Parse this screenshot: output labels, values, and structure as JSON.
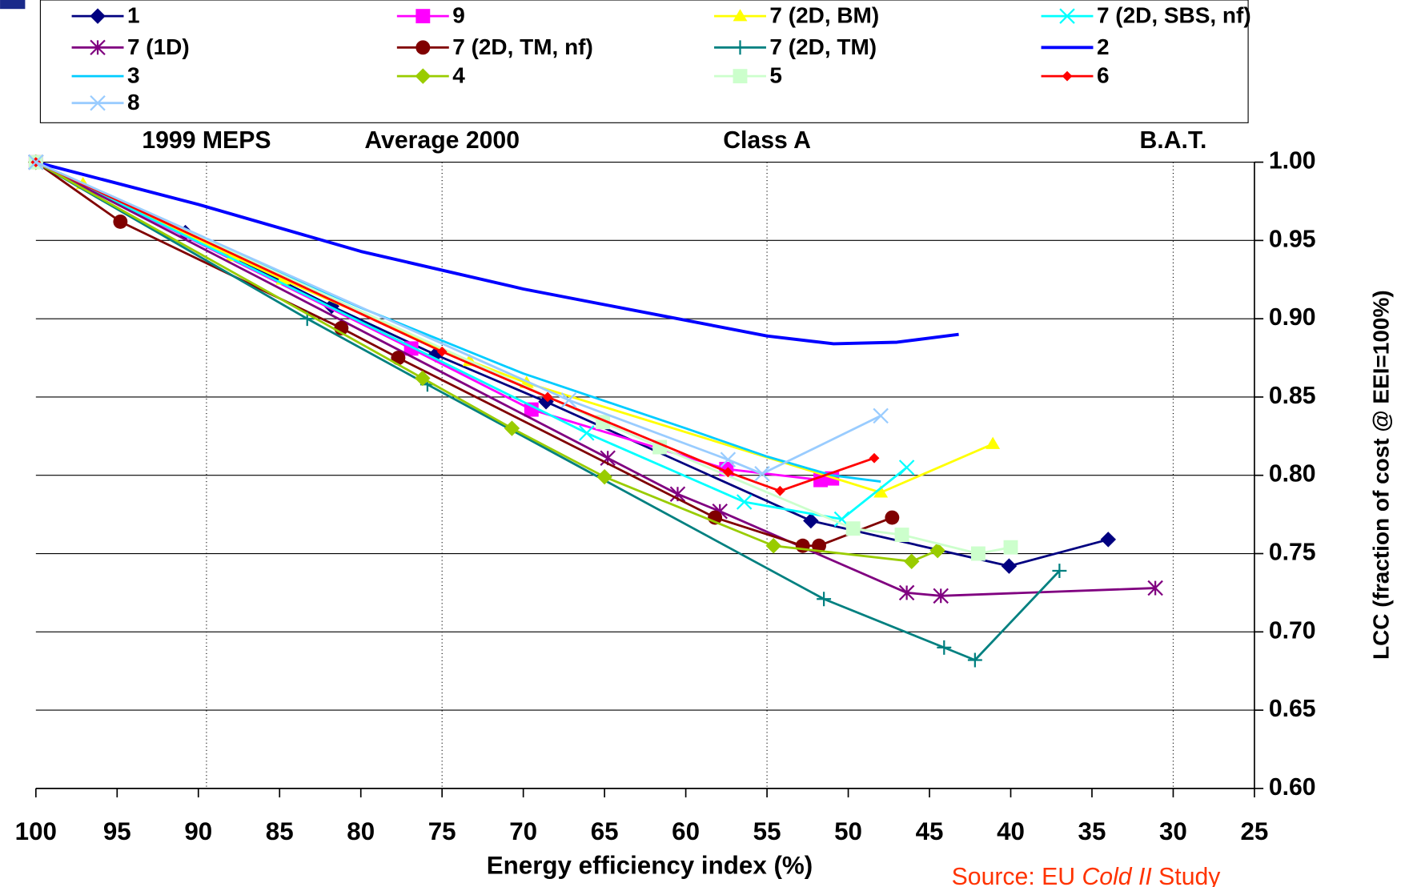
{
  "chart_data": {
    "type": "line",
    "x_label": "Energy efficiency index (%)",
    "y_label": "LCC (fraction of cost @ EEI=100%)",
    "source": [
      "Source: EU ",
      "Cold II",
      " Study"
    ],
    "xlim": [
      100,
      25
    ],
    "xticks": [
      100,
      95,
      90,
      85,
      80,
      75,
      70,
      65,
      60,
      55,
      50,
      45,
      40,
      35,
      30,
      25
    ],
    "ylim": [
      0.6,
      1.0
    ],
    "yticks": [
      {
        "value": 0.6,
        "label": "0.60"
      },
      {
        "value": 0.65,
        "label": "0.65"
      },
      {
        "value": 0.7,
        "label": "0.70"
      },
      {
        "value": 0.75,
        "label": "0.75"
      },
      {
        "value": 0.8,
        "label": "0.80"
      },
      {
        "value": 0.85,
        "label": "0.85"
      },
      {
        "value": 0.9,
        "label": "0.90"
      },
      {
        "value": 0.95,
        "label": "0.95"
      },
      {
        "value": 1.0,
        "label": "1.00"
      }
    ],
    "grid": true,
    "legend": "top",
    "annotations": [
      {
        "text": "1999 MEPS",
        "x": 89.5
      },
      {
        "text": "Average 2000",
        "x": 75
      },
      {
        "text": "Class A",
        "x": 55
      },
      {
        "text": "B.A.T.",
        "x": 30
      }
    ],
    "series": [
      {
        "name": "1",
        "color": "#000080",
        "marker": "diamond",
        "x": [
          100,
          90.8,
          81.8,
          75.4,
          68.6,
          52.3,
          40.1,
          34
        ],
        "values": [
          1.0,
          0.955,
          0.908,
          0.877,
          0.847,
          0.771,
          0.742,
          0.759
        ]
      },
      {
        "name": "9",
        "color": "#ff00ff",
        "marker": "square",
        "x": [
          100,
          76.9,
          69.5,
          57.5,
          51.7,
          51.0
        ],
        "values": [
          1.0,
          0.881,
          0.842,
          0.804,
          0.797,
          0.798
        ]
      },
      {
        "name": "7 (2D, BM)",
        "color": "#ffff00",
        "marker": "triangle",
        "x": [
          100,
          97.1,
          87.9,
          84.8,
          73.3,
          69.8,
          48.0,
          41.1
        ],
        "values": [
          1.0,
          0.986,
          0.94,
          0.925,
          0.873,
          0.859,
          0.789,
          0.82
        ]
      },
      {
        "name": "7 (2D, SBS, nf)",
        "color": "#00ffff",
        "marker": "x",
        "x": [
          100,
          66.1,
          56.4,
          50.4,
          46.4
        ],
        "values": [
          1.0,
          0.827,
          0.783,
          0.772,
          0.805
        ]
      },
      {
        "name": "7 (1D)",
        "color": "#800080",
        "marker": "asterisk",
        "x": [
          100,
          64.8,
          60.5,
          57.9,
          46.4,
          44.3,
          31.1
        ],
        "values": [
          1.0,
          0.811,
          0.788,
          0.777,
          0.725,
          0.723,
          0.728
        ]
      },
      {
        "name": "7 (2D, TM, nf)",
        "color": "#800000",
        "marker": "circle",
        "x": [
          100,
          94.8,
          81.2,
          77.7,
          58.2,
          52.8,
          51.8,
          47.3
        ],
        "values": [
          1.0,
          0.962,
          0.894,
          0.875,
          0.773,
          0.755,
          0.755,
          0.773
        ]
      },
      {
        "name": "7 (2D, TM)",
        "color": "#008080",
        "marker": "plus",
        "x": [
          100,
          83.3,
          75.9,
          51.5,
          44.1,
          42.2,
          37.0
        ],
        "values": [
          1.0,
          0.9,
          0.858,
          0.721,
          0.69,
          0.682,
          0.739
        ]
      },
      {
        "name": "2",
        "color": "#0000ff",
        "marker": "none",
        "x": [
          100,
          90,
          80,
          70,
          60,
          55,
          50.9,
          47,
          43.2
        ],
        "values": [
          1.0,
          0.973,
          0.943,
          0.919,
          0.899,
          0.889,
          0.884,
          0.885,
          0.89
        ]
      },
      {
        "name": "3",
        "color": "#00ccff",
        "marker": "none",
        "x": [
          100,
          90,
          80,
          70,
          60,
          55,
          51,
          48
        ],
        "values": [
          1.0,
          0.952,
          0.907,
          0.865,
          0.83,
          0.812,
          0.8,
          0.796
        ]
      },
      {
        "name": "4",
        "color": "#99cc00",
        "marker": "diamond",
        "x": [
          100,
          76.2,
          70.7,
          65.0,
          54.6,
          46.1,
          44.5
        ],
        "values": [
          1.0,
          0.862,
          0.83,
          0.799,
          0.755,
          0.745,
          0.752
        ]
      },
      {
        "name": "5",
        "color": "#ccffcc",
        "marker": "square",
        "x": [
          100,
          65.1,
          61.6,
          49.7,
          46.7,
          42.0,
          40.0
        ],
        "values": [
          1.0,
          0.834,
          0.818,
          0.766,
          0.762,
          0.75,
          0.754
        ]
      },
      {
        "name": "6",
        "color": "#ff0000",
        "marker": "smalldiamond",
        "x": [
          100,
          75.0,
          68.5,
          57.4,
          54.2,
          48.4
        ],
        "values": [
          1.0,
          0.879,
          0.85,
          0.802,
          0.79,
          0.811
        ]
      },
      {
        "name": "8",
        "color": "#99ccff",
        "marker": "x",
        "x": [
          100,
          67.2,
          57.4,
          55.3,
          48.0
        ],
        "values": [
          1.0,
          0.848,
          0.81,
          0.801,
          0.838
        ]
      }
    ]
  }
}
